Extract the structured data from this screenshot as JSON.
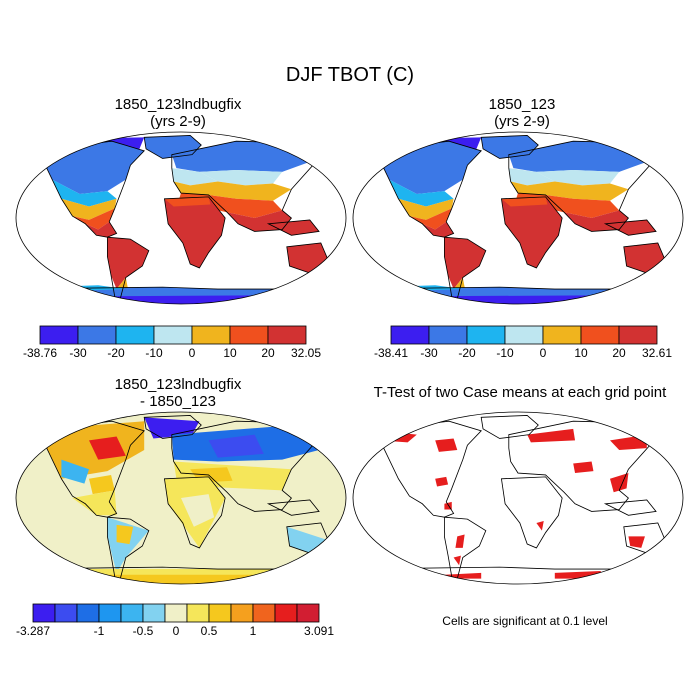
{
  "title": "DJF TBOT (C)",
  "panels": [
    {
      "id": "p1",
      "line1": "1850_123lndbugfix",
      "line2": "(yrs 2-9)"
    },
    {
      "id": "p2",
      "line1": "1850_123",
      "line2": "(yrs 2-9)"
    },
    {
      "id": "p3",
      "line1": "1850_123lndbugfix",
      "line2": "- 1850_123"
    },
    {
      "id": "p4",
      "line1": "T-Test of two Case means at each grid point"
    }
  ],
  "colorbars": {
    "temp1": {
      "labels": [
        "-38.76",
        "-30",
        "-20",
        "-10",
        "0",
        "10",
        "20",
        "32.05"
      ],
      "colors": [
        "#3c1ef0",
        "#3c78e6",
        "#1eb4f0",
        "#bee6f0",
        "#f0b41e",
        "#f0501e",
        "#d23232"
      ]
    },
    "temp2": {
      "labels": [
        "-38.41",
        "-30",
        "-20",
        "-10",
        "0",
        "10",
        "20",
        "32.61"
      ],
      "colors": [
        "#3c1ef0",
        "#3c78e6",
        "#1eb4f0",
        "#bee6f0",
        "#f0b41e",
        "#f0501e",
        "#d23232"
      ]
    },
    "diff": {
      "labels": [
        "-3.287",
        "-1",
        "-0.5",
        "0",
        "0.5",
        "1",
        "3.091"
      ],
      "colors": [
        "#3c1ef0",
        "#3c4cf0",
        "#1e6ee6",
        "#1e96f0",
        "#3cb4f0",
        "#82d2f0",
        "#f0f0c8",
        "#f5e65a",
        "#f5c81e",
        "#f5a01e",
        "#f0641e",
        "#e61e1e",
        "#d21e32"
      ]
    }
  },
  "palette": {
    "ocean": "#ffffff",
    "coast": "#000000",
    "sig": "#e61e1e"
  },
  "footnote": "Cells are significant at 0.1 level"
}
